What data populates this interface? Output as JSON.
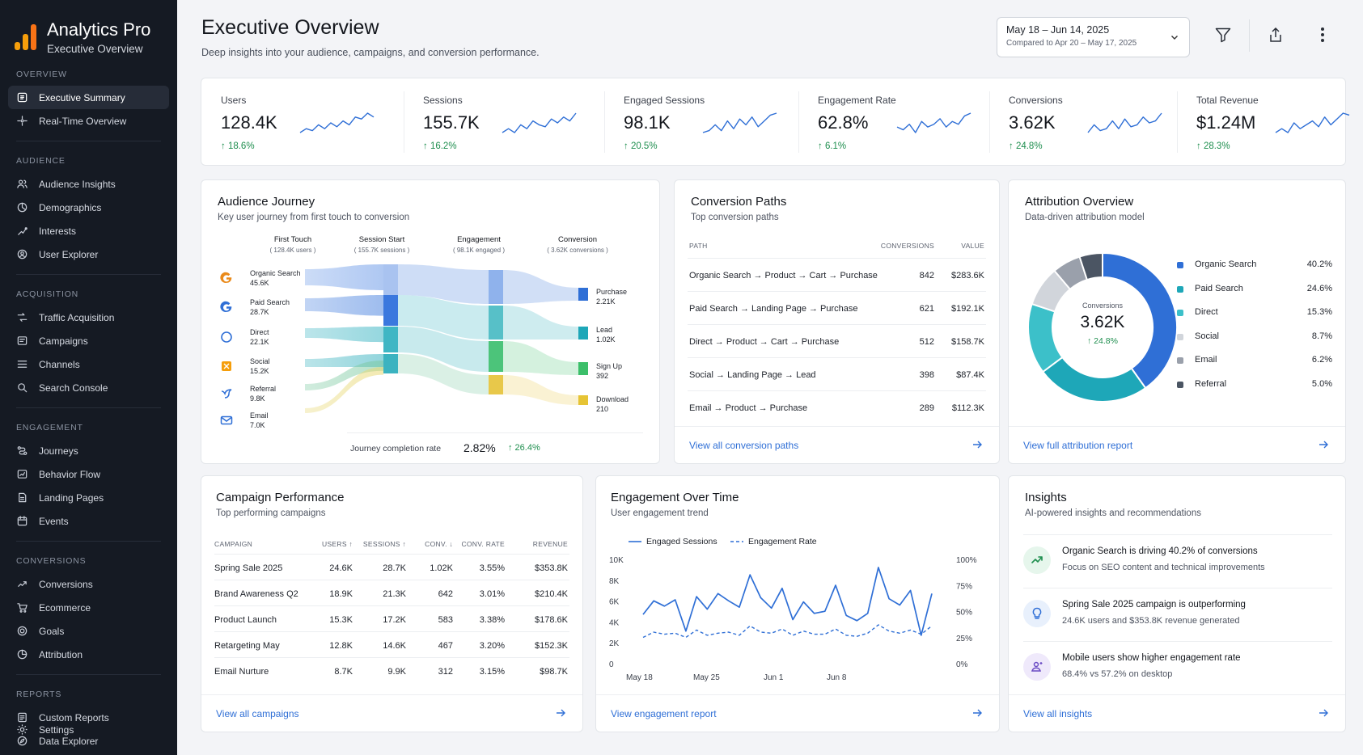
{
  "app": {
    "name": "Analytics Pro",
    "subtitle": "Executive Overview"
  },
  "sidebar": {
    "sections": [
      {
        "label": "OVERVIEW",
        "items": [
          {
            "label": "Executive Summary",
            "icon": "summary-icon",
            "active": true
          },
          {
            "label": "Real-Time Overview",
            "icon": "realtime-icon"
          }
        ]
      },
      {
        "label": "AUDIENCE",
        "items": [
          {
            "label": "Audience Insights",
            "icon": "users-icon"
          },
          {
            "label": "Demographics",
            "icon": "demographics-icon"
          },
          {
            "label": "Interests",
            "icon": "interests-icon"
          },
          {
            "label": "User Explorer",
            "icon": "user-explorer-icon"
          }
        ]
      },
      {
        "label": "ACQUISITION",
        "items": [
          {
            "label": "Traffic Acquisition",
            "icon": "traffic-icon"
          },
          {
            "label": "Campaigns",
            "icon": "campaigns-icon"
          },
          {
            "label": "Channels",
            "icon": "channels-icon"
          },
          {
            "label": "Search Console",
            "icon": "search-console-icon"
          }
        ]
      },
      {
        "label": "ENGAGEMENT",
        "items": [
          {
            "label": "Journeys",
            "icon": "journeys-icon"
          },
          {
            "label": "Behavior Flow",
            "icon": "behavior-flow-icon"
          },
          {
            "label": "Landing Pages",
            "icon": "landing-pages-icon"
          },
          {
            "label": "Events",
            "icon": "events-icon"
          }
        ]
      },
      {
        "label": "CONVERSIONS",
        "items": [
          {
            "label": "Conversions",
            "icon": "conversions-icon"
          },
          {
            "label": "Ecommerce",
            "icon": "ecommerce-icon"
          },
          {
            "label": "Goals",
            "icon": "goals-icon"
          },
          {
            "label": "Attribution",
            "icon": "attribution-icon"
          }
        ]
      },
      {
        "label": "REPORTS",
        "items": [
          {
            "label": "Custom Reports",
            "icon": "custom-reports-icon"
          },
          {
            "label": "Data Explorer",
            "icon": "data-explorer-icon"
          }
        ]
      }
    ],
    "settings_label": "Settings"
  },
  "header": {
    "title": "Executive Overview",
    "subtitle": "Deep insights into your audience, campaigns, and conversion performance.",
    "date_range": "May 18 – Jun 14, 2025",
    "compare_range": "Compared to Apr 20 – May 17, 2025"
  },
  "kpis": [
    {
      "label": "Users",
      "value": "128.4K",
      "delta": "↑ 18.6%",
      "trend": [
        3,
        4,
        3.5,
        5,
        4,
        5.5,
        4.5,
        6,
        5,
        7,
        6.5,
        8,
        7
      ]
    },
    {
      "label": "Sessions",
      "value": "155.7K",
      "delta": "↑ 16.2%",
      "trend": [
        3,
        4,
        3,
        5,
        4,
        6,
        5,
        4.5,
        6.5,
        5.5,
        7,
        6,
        8
      ]
    },
    {
      "label": "Engaged Sessions",
      "value": "98.1K",
      "delta": "↑ 20.5%",
      "trend": [
        3,
        3.5,
        5,
        3.5,
        6,
        4,
        6.5,
        5,
        7,
        4.5,
        6,
        7.5,
        8
      ]
    },
    {
      "label": "Engagement Rate",
      "value": "62.8%",
      "delta": "↑ 6.1%",
      "trend": [
        5,
        4.5,
        5.5,
        4,
        6,
        5,
        5.5,
        6.5,
        5,
        6,
        5.5,
        7,
        7.5
      ]
    },
    {
      "label": "Conversions",
      "value": "3.62K",
      "delta": "↑ 24.8%",
      "trend": [
        3,
        5,
        3.5,
        4,
        6,
        4,
        6.5,
        4.5,
        5,
        7,
        5.5,
        6,
        8
      ]
    },
    {
      "label": "Total Revenue",
      "value": "$1.24M",
      "delta": "↑ 28.3%",
      "trend": [
        3,
        4,
        3,
        5.5,
        4,
        5,
        6,
        4.5,
        7,
        5,
        6.5,
        8,
        7.5
      ]
    }
  ],
  "journey": {
    "title": "Audience Journey",
    "subtitle": "Key user journey from first touch to conversion",
    "stages": [
      {
        "label": "First Touch",
        "sub": "( 128.4K users )"
      },
      {
        "label": "Session Start",
        "sub": "( 155.7K sessions )"
      },
      {
        "label": "Engagement",
        "sub": "( 98.1K engaged )"
      },
      {
        "label": "Conversion",
        "sub": "( 3.62K conversions )"
      }
    ],
    "sources": [
      {
        "name": "Organic Search",
        "value": "45.6K",
        "icon": "google-icon"
      },
      {
        "name": "Paid Search",
        "value": "28.7K",
        "icon": "google-ads-icon"
      },
      {
        "name": "Direct",
        "value": "22.1K",
        "icon": "direct-icon"
      },
      {
        "name": "Social",
        "value": "15.2K",
        "icon": "social-icon"
      },
      {
        "name": "Referral",
        "value": "9.8K",
        "icon": "referral-icon"
      },
      {
        "name": "Email",
        "value": "7.0K",
        "icon": "email-icon"
      }
    ],
    "outcomes": [
      {
        "name": "Purchase",
        "value": "2.21K",
        "color": "#2f6fd6"
      },
      {
        "name": "Lead",
        "value": "1.02K",
        "color": "#1ea7b8"
      },
      {
        "name": "Sign Up",
        "value": "392",
        "color": "#3cbf6a"
      },
      {
        "name": "Download",
        "value": "210",
        "color": "#e6c435"
      }
    ],
    "completion_label": "Journey completion rate",
    "completion_value": "2.82%",
    "completion_delta": "↑ 26.4%"
  },
  "paths": {
    "title": "Conversion Paths",
    "subtitle": "Top conversion paths",
    "headers": {
      "path": "PATH",
      "conversions": "CONVERSIONS",
      "value": "VALUE"
    },
    "rows": [
      {
        "path": "Organic Search → Product → Cart → Purchase",
        "conversions": "842",
        "value": "$283.6K"
      },
      {
        "path": "Paid Search → Landing Page → Purchase",
        "conversions": "621",
        "value": "$192.1K"
      },
      {
        "path": "Direct → Product → Cart → Purchase",
        "conversions": "512",
        "value": "$158.7K"
      },
      {
        "path": "Social → Landing Page → Lead",
        "conversions": "398",
        "value": "$87.4K"
      },
      {
        "path": "Email → Product → Purchase",
        "conversions": "289",
        "value": "$112.3K"
      }
    ],
    "footer_link": "View all conversion paths"
  },
  "attribution": {
    "title": "Attribution Overview",
    "subtitle": "Data-driven attribution model",
    "center_label": "Conversions",
    "center_value": "3.62K",
    "center_delta": "↑ 24.8%",
    "slices": [
      {
        "name": "Organic Search",
        "pct": "40.2%",
        "value": 40.2,
        "color": "#2f6fd6"
      },
      {
        "name": "Paid Search",
        "pct": "24.6%",
        "value": 24.6,
        "color": "#1ea7b8"
      },
      {
        "name": "Direct",
        "pct": "15.3%",
        "value": 15.3,
        "color": "#3cc0c9"
      },
      {
        "name": "Social",
        "pct": "8.7%",
        "value": 8.7,
        "color": "#d1d5db"
      },
      {
        "name": "Email",
        "pct": "6.2%",
        "value": 6.2,
        "color": "#9aa0ab"
      },
      {
        "name": "Referral",
        "pct": "5.0%",
        "value": 5.0,
        "color": "#4b5563"
      }
    ],
    "footer_link": "View full attribution report"
  },
  "campaigns": {
    "title": "Campaign Performance",
    "subtitle": "Top performing campaigns",
    "headers": {
      "campaign": "CAMPAIGN",
      "users": "USERS ↑",
      "sessions": "SESSIONS ↑",
      "conv": "CONV. ↓",
      "rate": "CONV. RATE",
      "revenue": "REVENUE"
    },
    "rows": [
      {
        "campaign": "Spring Sale 2025",
        "users": "24.6K",
        "sessions": "28.7K",
        "conv": "1.02K",
        "rate": "3.55%",
        "revenue": "$353.8K"
      },
      {
        "campaign": "Brand Awareness Q2",
        "users": "18.9K",
        "sessions": "21.3K",
        "conv": "642",
        "rate": "3.01%",
        "revenue": "$210.4K"
      },
      {
        "campaign": "Product Launch",
        "users": "15.3K",
        "sessions": "17.2K",
        "conv": "583",
        "rate": "3.38%",
        "revenue": "$178.6K"
      },
      {
        "campaign": "Retargeting May",
        "users": "12.8K",
        "sessions": "14.6K",
        "conv": "467",
        "rate": "3.20%",
        "revenue": "$152.3K"
      },
      {
        "campaign": "Email Nurture",
        "users": "8.7K",
        "sessions": "9.9K",
        "conv": "312",
        "rate": "3.15%",
        "revenue": "$98.7K"
      }
    ],
    "footer_link": "View all campaigns"
  },
  "engagement": {
    "title": "Engagement Over Time",
    "subtitle": "User engagement trend",
    "footer_link": "View engagement report"
  },
  "chart_data": {
    "type": "line",
    "title": "Engagement Over Time",
    "x_tick_labels": [
      "May 18",
      "May 25",
      "Jun 1",
      "Jun 8"
    ],
    "y_left_ticks": [
      "0",
      "2K",
      "4K",
      "6K",
      "8K",
      "10K"
    ],
    "y_right_ticks": [
      "0%",
      "25%",
      "50%",
      "75%",
      "100%"
    ],
    "ylim_left": [
      0,
      10000
    ],
    "ylim_right": [
      0,
      100
    ],
    "legend_position": "top-left",
    "series": [
      {
        "name": "Engaged Sessions",
        "axis": "left",
        "style": "solid",
        "color": "#2f6fd6",
        "values": [
          4800,
          6100,
          5600,
          6200,
          3200,
          6500,
          5300,
          6800,
          6100,
          5500,
          8600,
          6400,
          5400,
          7300,
          4300,
          6000,
          4900,
          5100,
          7600,
          4700,
          4200,
          4900,
          9300,
          6300,
          5700,
          7100,
          2800,
          6800
        ]
      },
      {
        "name": "Engagement Rate",
        "axis": "right",
        "style": "dashed",
        "color": "#2f6fd6",
        "values": [
          26,
          31,
          29,
          30,
          26,
          33,
          28,
          30,
          31,
          28,
          37,
          31,
          30,
          34,
          28,
          32,
          29,
          29,
          34,
          28,
          27,
          30,
          38,
          32,
          30,
          33,
          29,
          37
        ]
      }
    ]
  },
  "insights": {
    "title": "Insights",
    "subtitle": "AI-powered insights and recommendations",
    "items": [
      {
        "title": "Organic Search is driving 40.2% of conversions",
        "sub": "Focus on SEO content and technical improvements",
        "icon": "trend-up-icon",
        "bg": "#e6f6ec",
        "fg": "#1e8e4e"
      },
      {
        "title": "Spring Sale 2025 campaign is outperforming",
        "sub": "24.6K users and $353.8K revenue generated",
        "icon": "lightbulb-icon",
        "bg": "#e8f0fc",
        "fg": "#2f6fd6"
      },
      {
        "title": "Mobile users show higher engagement rate",
        "sub": "68.4% vs 57.2% on desktop",
        "icon": "user-engaged-icon",
        "bg": "#efe9fb",
        "fg": "#6a4bc4"
      }
    ],
    "footer_link": "View all insights"
  }
}
